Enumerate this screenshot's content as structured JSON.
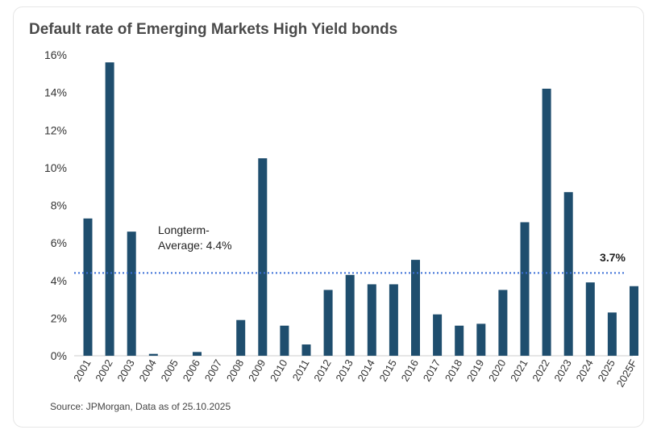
{
  "chart_data": {
    "type": "bar",
    "title": "Default rate of Emerging Markets High Yield bonds",
    "xlabel": "",
    "ylabel": "",
    "ylim": [
      0,
      16
    ],
    "yticks": [
      "0%",
      "2%",
      "4%",
      "6%",
      "8%",
      "10%",
      "12%",
      "14%",
      "16%"
    ],
    "categories": [
      "2001",
      "2002",
      "2003",
      "2004",
      "2005",
      "2006",
      "2007",
      "2008",
      "2009",
      "2010",
      "2011",
      "2012",
      "2013",
      "2014",
      "2015",
      "2016",
      "2017",
      "2018",
      "2019",
      "2020",
      "2021",
      "2022",
      "2023",
      "2024",
      "2025",
      "2025F"
    ],
    "values": [
      7.3,
      15.6,
      6.6,
      0.1,
      0,
      0.2,
      0,
      1.9,
      10.5,
      1.6,
      0.6,
      3.5,
      4.3,
      3.8,
      3.8,
      5.1,
      2.2,
      1.6,
      1.7,
      3.5,
      7.1,
      14.2,
      8.7,
      3.9,
      2.3,
      3.7
    ],
    "average": 4.4,
    "average_label_line1": "Longterm-",
    "average_label_line2": "Average: 4.4%",
    "last_value_label": "3.7%",
    "grid": false,
    "colors": {
      "bar": "#1f4e6e",
      "average": "#3b6fd6"
    }
  },
  "source": "Source: JPMorgan, Data as of 25.10.2025"
}
